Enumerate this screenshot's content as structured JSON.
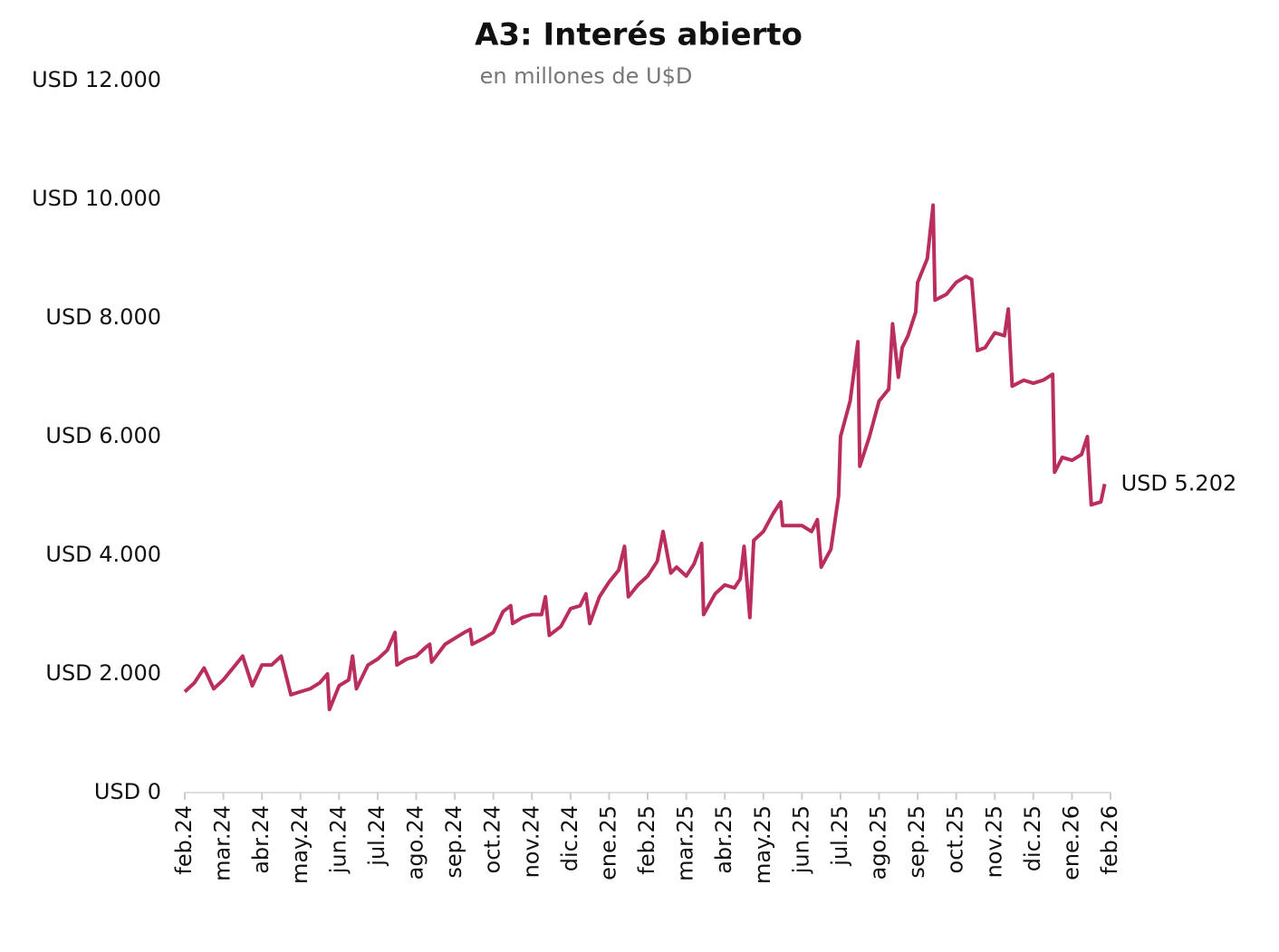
{
  "chart_data": {
    "type": "line",
    "title": "A3: Interés abierto",
    "subtitle": "en millones de U$D",
    "x": [
      0,
      0.25,
      0.5,
      0.75,
      1,
      1.25,
      1.5,
      1.75,
      2,
      2.25,
      2.5,
      2.75,
      3,
      3.25,
      3.5,
      3.7,
      3.75,
      4,
      4.25,
      4.35,
      4.45,
      4.75,
      5,
      5.25,
      5.45,
      5.5,
      5.75,
      6,
      6.25,
      6.35,
      6.4,
      6.75,
      7,
      7.25,
      7.4,
      7.45,
      7.75,
      8,
      8.25,
      8.45,
      8.5,
      8.75,
      9,
      9.25,
      9.35,
      9.45,
      9.75,
      10,
      10.25,
      10.4,
      10.5,
      10.75,
      11,
      11.25,
      11.4,
      11.5,
      11.75,
      12,
      12.25,
      12.4,
      12.6,
      12.75,
      13,
      13.2,
      13.4,
      13.45,
      13.75,
      14,
      14.25,
      14.4,
      14.5,
      14.65,
      14.75,
      15,
      15.25,
      15.45,
      15.5,
      15.75,
      16,
      16.25,
      16.4,
      16.5,
      16.75,
      16.95,
      17,
      17.25,
      17.45,
      17.5,
      17.75,
      18,
      18.25,
      18.35,
      18.5,
      18.6,
      18.75,
      18.95,
      19,
      19.25,
      19.4,
      19.45,
      19.75,
      20,
      20.25,
      20.4,
      20.55,
      20.75,
      21,
      21.25,
      21.35,
      21.45,
      21.75,
      22,
      22.25,
      22.5,
      22.55,
      22.75,
      23,
      23.25,
      23.4,
      23.5,
      23.75,
      23.85
    ],
    "series": [
      {
        "color": "#b92e5f",
        "values": [
          1700,
          1850,
          2100,
          1750,
          1900,
          2100,
          2300,
          1800,
          2150,
          2150,
          2300,
          1650,
          1700,
          1750,
          1850,
          2000,
          1400,
          1800,
          1900,
          2300,
          1750,
          2150,
          2250,
          2400,
          2700,
          2150,
          2250,
          2300,
          2450,
          2500,
          2200,
          2500,
          2600,
          2700,
          2750,
          2500,
          2600,
          2700,
          3050,
          3150,
          2850,
          2950,
          3000,
          3000,
          3300,
          2650,
          2800,
          3100,
          3150,
          3350,
          2850,
          3300,
          3550,
          3750,
          4150,
          3300,
          3500,
          3650,
          3900,
          4400,
          3700,
          3800,
          3650,
          3850,
          4200,
          3000,
          3350,
          3500,
          3450,
          3600,
          4150,
          2950,
          4250,
          4400,
          4700,
          4900,
          4500,
          4500,
          4500,
          4400,
          4600,
          3800,
          4100,
          5000,
          6000,
          6600,
          7600,
          5500,
          6000,
          6600,
          6800,
          7900,
          7000,
          7500,
          7700,
          8100,
          8600,
          9000,
          9900,
          8300,
          8400,
          8600,
          8700,
          8650,
          7450,
          7500,
          7750,
          7700,
          8150,
          6850,
          6950,
          6900,
          6950,
          7050,
          5400,
          5650,
          5600,
          5700,
          6000,
          4850,
          4900,
          5202
        ]
      }
    ],
    "last_value_label": "USD 5.202",
    "xlim": [
      0,
      24
    ],
    "xticks": [
      {
        "value": 0,
        "label": "feb.24"
      },
      {
        "value": 1,
        "label": "mar.24"
      },
      {
        "value": 2,
        "label": "abr.24"
      },
      {
        "value": 3,
        "label": "may.24"
      },
      {
        "value": 4,
        "label": "jun.24"
      },
      {
        "value": 5,
        "label": "jul.24"
      },
      {
        "value": 6,
        "label": "ago.24"
      },
      {
        "value": 7,
        "label": "sep.24"
      },
      {
        "value": 8,
        "label": "oct.24"
      },
      {
        "value": 9,
        "label": "nov.24"
      },
      {
        "value": 10,
        "label": "dic.24"
      },
      {
        "value": 11,
        "label": "ene.25"
      },
      {
        "value": 12,
        "label": "feb.25"
      },
      {
        "value": 13,
        "label": "mar.25"
      },
      {
        "value": 14,
        "label": "abr.25"
      },
      {
        "value": 15,
        "label": "may.25"
      },
      {
        "value": 16,
        "label": "jun.25"
      },
      {
        "value": 17,
        "label": "jul.25"
      },
      {
        "value": 18,
        "label": "ago.25"
      },
      {
        "value": 19,
        "label": "sep.25"
      },
      {
        "value": 20,
        "label": "oct.25"
      },
      {
        "value": 21,
        "label": "nov.25"
      },
      {
        "value": 22,
        "label": "dic.25"
      },
      {
        "value": 23,
        "label": "ene.26"
      },
      {
        "value": 24,
        "label": "feb.26"
      }
    ],
    "ylim": [
      0,
      12000
    ],
    "yticks": [
      {
        "value": 0,
        "label": "USD 0"
      },
      {
        "value": 2000,
        "label": "USD 2.000"
      },
      {
        "value": 4000,
        "label": "USD 4.000"
      },
      {
        "value": 6000,
        "label": "USD 6.000"
      },
      {
        "value": 8000,
        "label": "USD 8.000"
      },
      {
        "value": 10000,
        "label": "USD 10.000"
      },
      {
        "value": 12000,
        "label": "USD 12.000"
      }
    ],
    "grid": false
  }
}
